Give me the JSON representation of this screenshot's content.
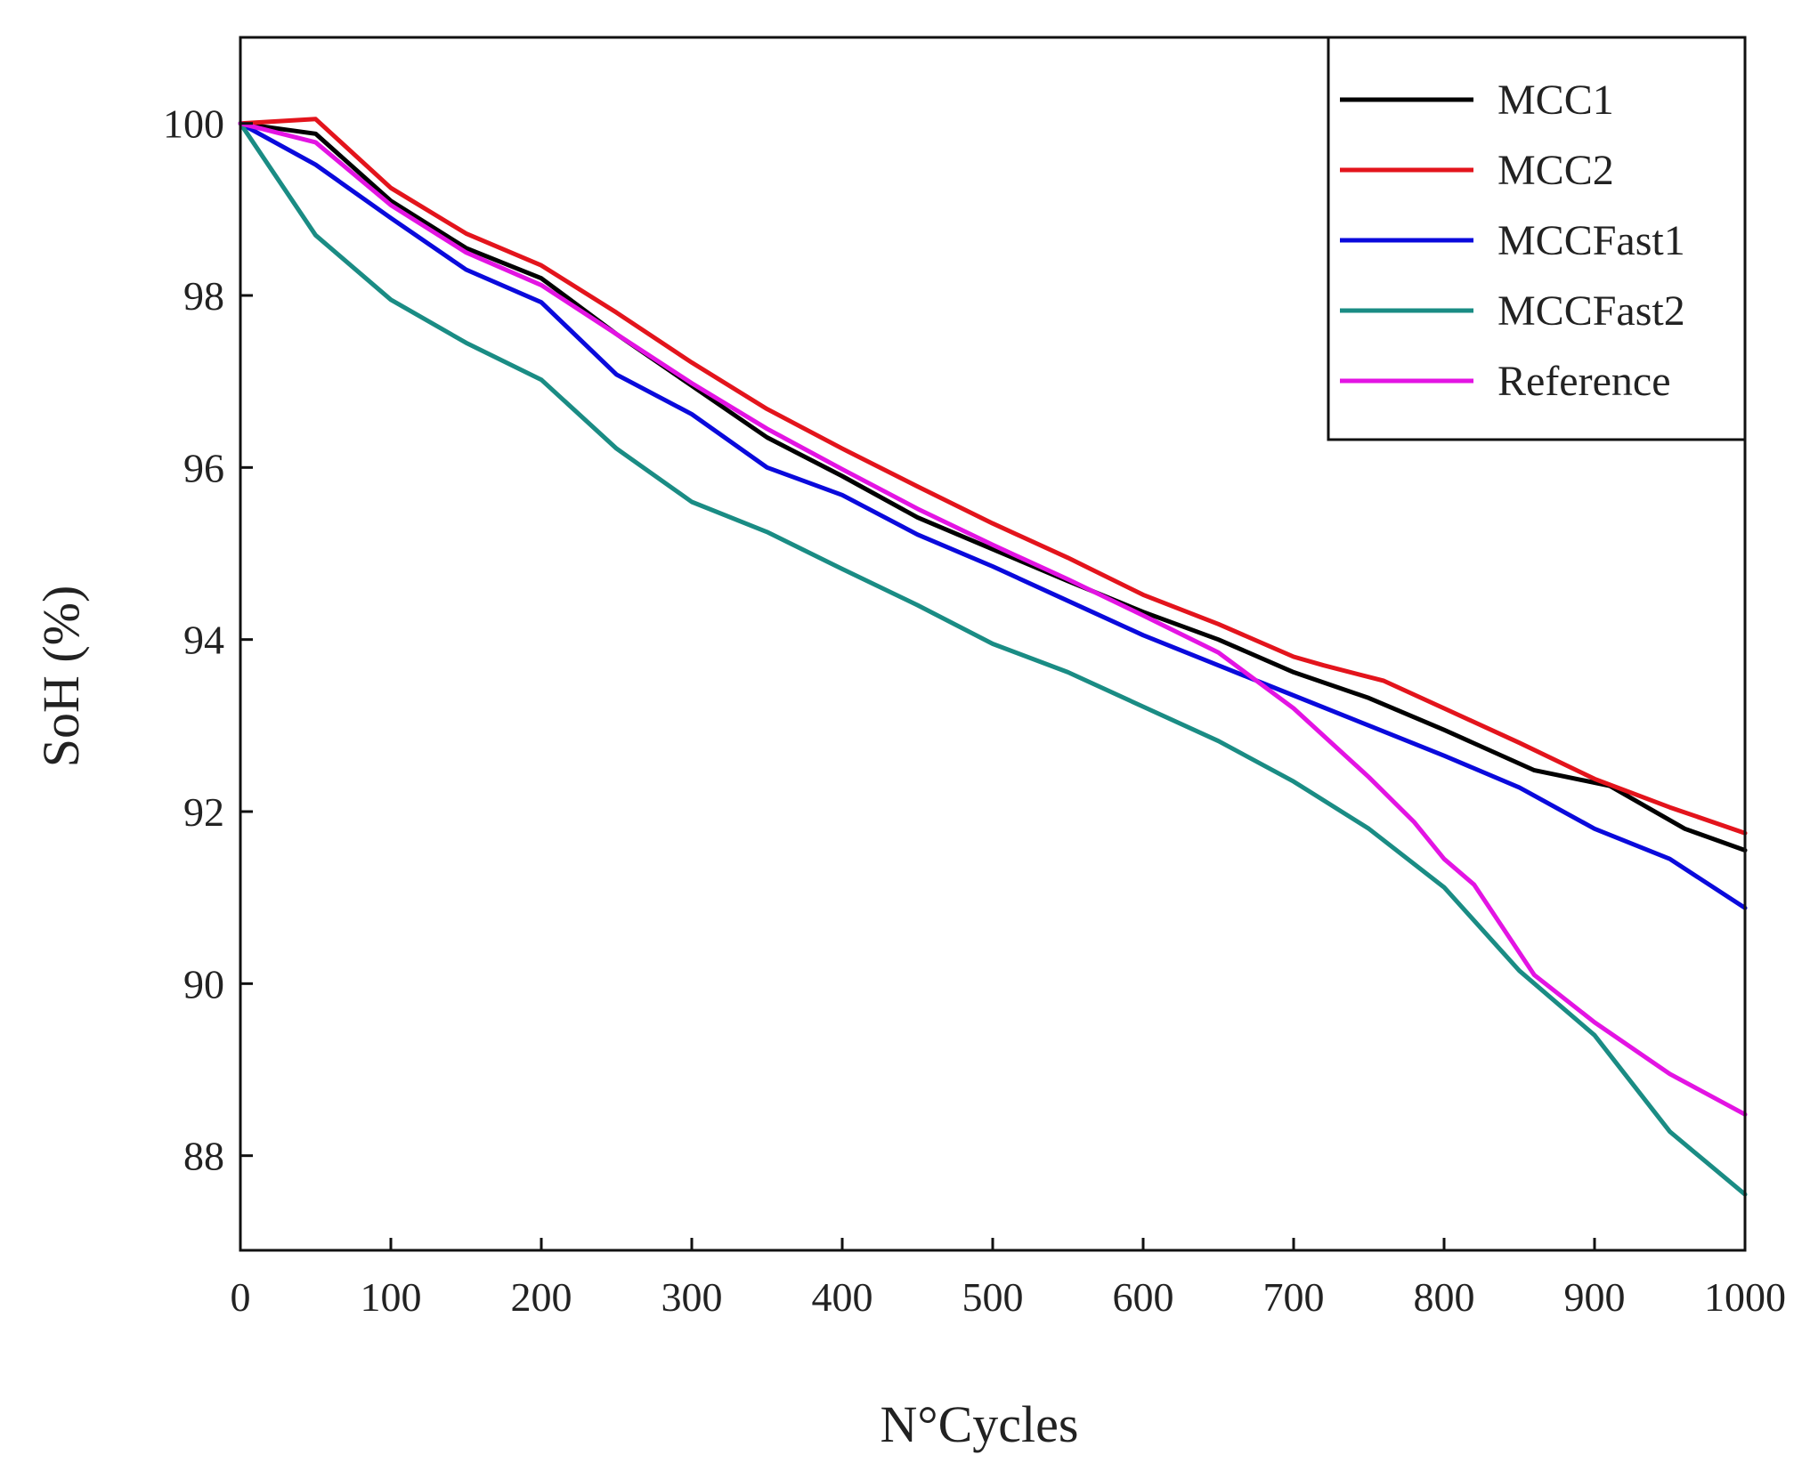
{
  "chart_data": {
    "type": "line",
    "xlabel": "N°Cycles",
    "ylabel": "SoH (%)",
    "xlim": [
      0,
      1000
    ],
    "ylim": [
      86.9,
      101
    ],
    "xticks": [
      0,
      100,
      200,
      300,
      400,
      500,
      600,
      700,
      800,
      900,
      1000
    ],
    "yticks": [
      88,
      90,
      92,
      94,
      96,
      98,
      100
    ],
    "grid": false,
    "legend_position": "top-right",
    "series": [
      {
        "name": "MCC1",
        "color": "#000000",
        "x": [
          0,
          50,
          100,
          150,
          200,
          250,
          300,
          350,
          400,
          450,
          500,
          550,
          600,
          650,
          700,
          750,
          800,
          860,
          910,
          960,
          1000
        ],
        "y": [
          100.0,
          99.88,
          99.1,
          98.55,
          98.2,
          97.55,
          96.95,
          96.35,
          95.9,
          95.42,
          95.05,
          94.68,
          94.32,
          94.0,
          93.62,
          93.32,
          92.95,
          92.48,
          92.3,
          91.8,
          91.55
        ]
      },
      {
        "name": "MCC2",
        "color": "#e3141c",
        "x": [
          0,
          50,
          100,
          150,
          200,
          250,
          300,
          350,
          400,
          450,
          500,
          550,
          600,
          650,
          700,
          720,
          760,
          800,
          850,
          900,
          950,
          1000
        ],
        "y": [
          100.0,
          100.05,
          99.25,
          98.72,
          98.35,
          97.8,
          97.22,
          96.68,
          96.22,
          95.78,
          95.35,
          94.95,
          94.52,
          94.18,
          93.8,
          93.7,
          93.52,
          93.2,
          92.8,
          92.38,
          92.05,
          91.75
        ]
      },
      {
        "name": "MCCFast1",
        "color": "#0a0adc",
        "x": [
          0,
          50,
          100,
          150,
          200,
          250,
          300,
          350,
          400,
          450,
          500,
          550,
          600,
          650,
          700,
          750,
          800,
          850,
          900,
          950,
          1000
        ],
        "y": [
          100.0,
          99.52,
          98.9,
          98.3,
          97.92,
          97.08,
          96.62,
          96.0,
          95.68,
          95.22,
          94.85,
          94.45,
          94.05,
          93.7,
          93.35,
          93.0,
          92.65,
          92.28,
          91.8,
          91.45,
          90.88
        ]
      },
      {
        "name": "MCCFast2",
        "color": "#1a8c84",
        "x": [
          0,
          50,
          100,
          150,
          200,
          250,
          300,
          350,
          400,
          450,
          500,
          550,
          600,
          650,
          700,
          750,
          800,
          850,
          900,
          950,
          1000
        ],
        "y": [
          100.0,
          98.7,
          97.95,
          97.45,
          97.02,
          96.22,
          95.6,
          95.25,
          94.82,
          94.4,
          93.95,
          93.62,
          93.22,
          92.82,
          92.35,
          91.8,
          91.12,
          90.15,
          89.4,
          88.28,
          87.55
        ]
      },
      {
        "name": "Reference",
        "color": "#e314e3",
        "x": [
          0,
          50,
          100,
          150,
          200,
          250,
          300,
          350,
          400,
          450,
          500,
          550,
          600,
          650,
          700,
          750,
          780,
          800,
          820,
          860,
          900,
          950,
          1000
        ],
        "y": [
          100.0,
          99.78,
          99.05,
          98.5,
          98.12,
          97.55,
          96.98,
          96.45,
          95.98,
          95.52,
          95.1,
          94.7,
          94.28,
          93.85,
          93.2,
          92.4,
          91.88,
          91.45,
          91.15,
          90.1,
          89.55,
          88.95,
          88.48
        ]
      }
    ]
  }
}
